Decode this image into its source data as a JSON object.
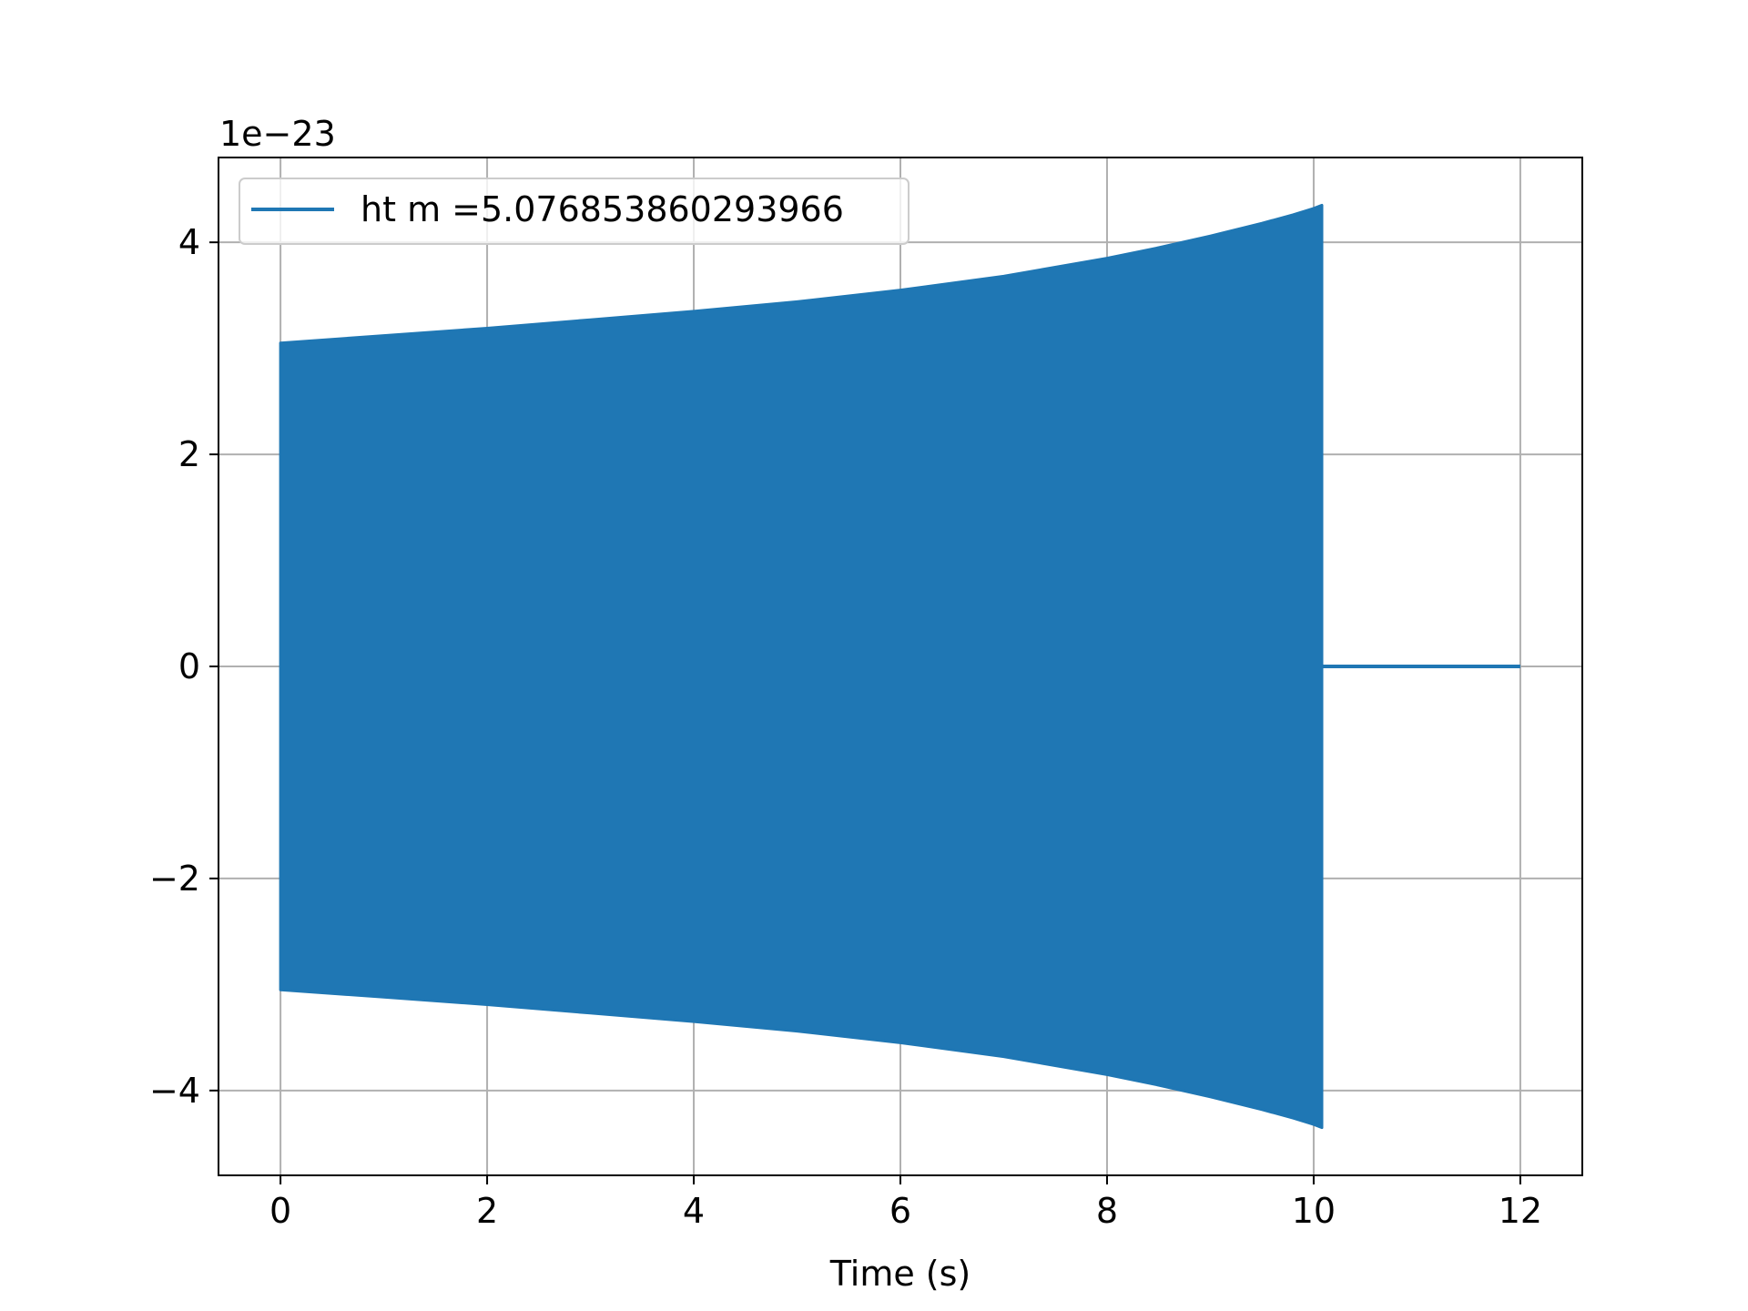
{
  "chart_data": {
    "type": "line",
    "title": "",
    "xlabel": "Time (s)",
    "ylabel": "",
    "y_offset_label": "1e−23",
    "xlim": [
      -0.6,
      12.6
    ],
    "ylim": [
      -4.8,
      4.8
    ],
    "x_ticks": [
      0,
      2,
      4,
      6,
      8,
      10,
      12
    ],
    "y_ticks": [
      -4,
      -2,
      0,
      2,
      4
    ],
    "x_tick_labels": [
      "0",
      "2",
      "4",
      "6",
      "8",
      "10",
      "12"
    ],
    "y_tick_labels": [
      "−4",
      "−2",
      "0",
      "2",
      "4"
    ],
    "grid": true,
    "legend_position": "top-left",
    "series": [
      {
        "name": "ht m =5.076853860293966",
        "color": "#1f77b4",
        "description": "oscillating chirp whose dense oscillations appear as a filled band; the envelope rises until ~10.1 s, then the signal stays at 0 until 12 s",
        "envelope_x": [
          0.0,
          1.0,
          2.0,
          3.0,
          4.0,
          5.0,
          6.0,
          7.0,
          8.0,
          8.5,
          9.0,
          9.5,
          9.8,
          10.0,
          10.08
        ],
        "envelope_upper": [
          3.05,
          3.12,
          3.19,
          3.27,
          3.35,
          3.44,
          3.55,
          3.68,
          3.85,
          3.95,
          4.06,
          4.18,
          4.26,
          4.32,
          4.35
        ],
        "envelope_lower": [
          -3.05,
          -3.12,
          -3.19,
          -3.27,
          -3.35,
          -3.44,
          -3.55,
          -3.68,
          -3.85,
          -3.95,
          -4.06,
          -4.18,
          -4.26,
          -4.32,
          -4.35
        ],
        "tail_x": [
          10.08,
          12.0
        ],
        "tail_y": [
          0,
          0
        ]
      }
    ]
  }
}
